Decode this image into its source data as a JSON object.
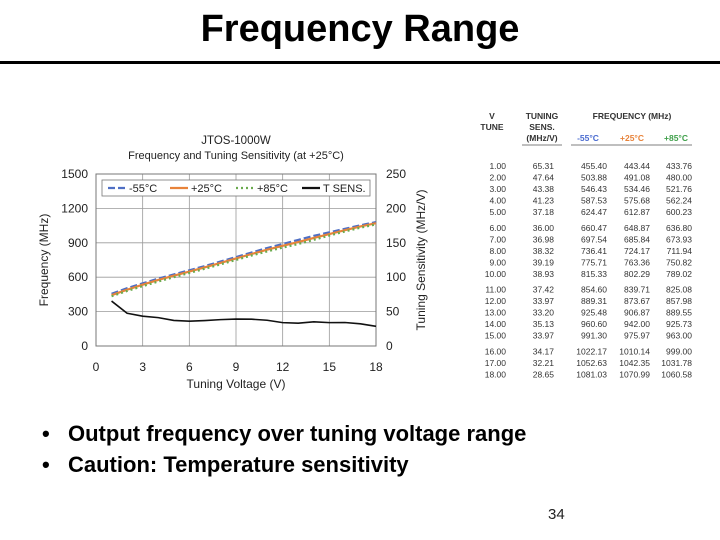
{
  "slide": {
    "title": "Frequency Range",
    "bullets": [
      "Output frequency over tuning voltage range",
      "Caution: Temperature sensitivity"
    ],
    "page_number": "34"
  },
  "chart_data": {
    "type": "line",
    "title": "JTOS-1000W",
    "subtitle": "Frequency and Tuning Sensitivity (at +25°C)",
    "xlabel": "Tuning Voltage (V)",
    "ylabel": "Frequency (MHz)",
    "y2label": "Tuning Sensitivity (MHz/V)",
    "xlim": [
      0,
      18
    ],
    "ylim": [
      0,
      1500
    ],
    "y2lim": [
      0,
      250
    ],
    "xticks": [
      0,
      3,
      6,
      9,
      12,
      15,
      18
    ],
    "yticks": [
      0,
      300,
      600,
      900,
      1200,
      1500
    ],
    "y2ticks": [
      0,
      50,
      100,
      150,
      200,
      250
    ],
    "grid": true,
    "legend_position": "top",
    "x": [
      1,
      2,
      3,
      4,
      5,
      6,
      7,
      8,
      9,
      10,
      11,
      12,
      13,
      14,
      15,
      16,
      17,
      18
    ],
    "series": [
      {
        "name": "-55°C",
        "color": "#4f6fc4",
        "axis": "left",
        "values": [
          455.4,
          503.88,
          546.43,
          587.53,
          624.47,
          660.47,
          697.54,
          736.41,
          775.71,
          815.33,
          854.6,
          889.31,
          925.48,
          960.6,
          991.3,
          1022.17,
          1052.63,
          1081.03
        ]
      },
      {
        "name": "+25°C",
        "color": "#e8833a",
        "axis": "left",
        "values": [
          443.44,
          491.08,
          534.46,
          575.68,
          612.87,
          648.87,
          685.84,
          724.17,
          763.36,
          802.29,
          839.71,
          873.67,
          906.87,
          942.0,
          975.97,
          1010.14,
          1042.35,
          1070.99
        ]
      },
      {
        "name": "+85°C",
        "color": "#6aab4e",
        "axis": "left",
        "values": [
          433.76,
          480.0,
          521.76,
          562.24,
          600.23,
          636.8,
          673.93,
          711.94,
          750.82,
          789.02,
          825.08,
          857.98,
          889.55,
          925.73,
          963.0,
          999.0,
          1031.78,
          1060.58
        ]
      },
      {
        "name": "T SENS.",
        "color": "#111111",
        "axis": "right",
        "values": [
          65.31,
          47.64,
          43.38,
          41.23,
          37.18,
          36.0,
          36.98,
          38.32,
          39.19,
          38.93,
          37.42,
          33.97,
          33.2,
          35.13,
          33.97,
          34.17,
          32.21,
          28.65
        ]
      }
    ]
  },
  "table": {
    "col_headers": [
      "V TUNE",
      "TUNING SENS. (MHz/V)",
      "FREQUENCY (MHz)"
    ],
    "sub_headers": [
      "-55°C",
      "+25°C",
      "+85°C"
    ],
    "sub_colors": [
      "#4a6bd0",
      "#e8833a",
      "#3fa04a"
    ],
    "rows": [
      [
        "1.00",
        "65.31",
        "455.40",
        "443.44",
        "433.76"
      ],
      [
        "2.00",
        "47.64",
        "503.88",
        "491.08",
        "480.00"
      ],
      [
        "3.00",
        "43.38",
        "546.43",
        "534.46",
        "521.76"
      ],
      [
        "4.00",
        "41.23",
        "587.53",
        "575.68",
        "562.24"
      ],
      [
        "5.00",
        "37.18",
        "624.47",
        "612.87",
        "600.23"
      ],
      [
        "6.00",
        "36.00",
        "660.47",
        "648.87",
        "636.80"
      ],
      [
        "7.00",
        "36.98",
        "697.54",
        "685.84",
        "673.93"
      ],
      [
        "8.00",
        "38.32",
        "736.41",
        "724.17",
        "711.94"
      ],
      [
        "9.00",
        "39.19",
        "775.71",
        "763.36",
        "750.82"
      ],
      [
        "10.00",
        "38.93",
        "815.33",
        "802.29",
        "789.02"
      ],
      [
        "11.00",
        "37.42",
        "854.60",
        "839.71",
        "825.08"
      ],
      [
        "12.00",
        "33.97",
        "889.31",
        "873.67",
        "857.98"
      ],
      [
        "13.00",
        "33.20",
        "925.48",
        "906.87",
        "889.55"
      ],
      [
        "14.00",
        "35.13",
        "960.60",
        "942.00",
        "925.73"
      ],
      [
        "15.00",
        "33.97",
        "991.30",
        "975.97",
        "963.00"
      ],
      [
        "16.00",
        "34.17",
        "1022.17",
        "1010.14",
        "999.00"
      ],
      [
        "17.00",
        "32.21",
        "1052.63",
        "1042.35",
        "1031.78"
      ],
      [
        "18.00",
        "28.65",
        "1081.03",
        "1070.99",
        "1060.58"
      ]
    ]
  }
}
